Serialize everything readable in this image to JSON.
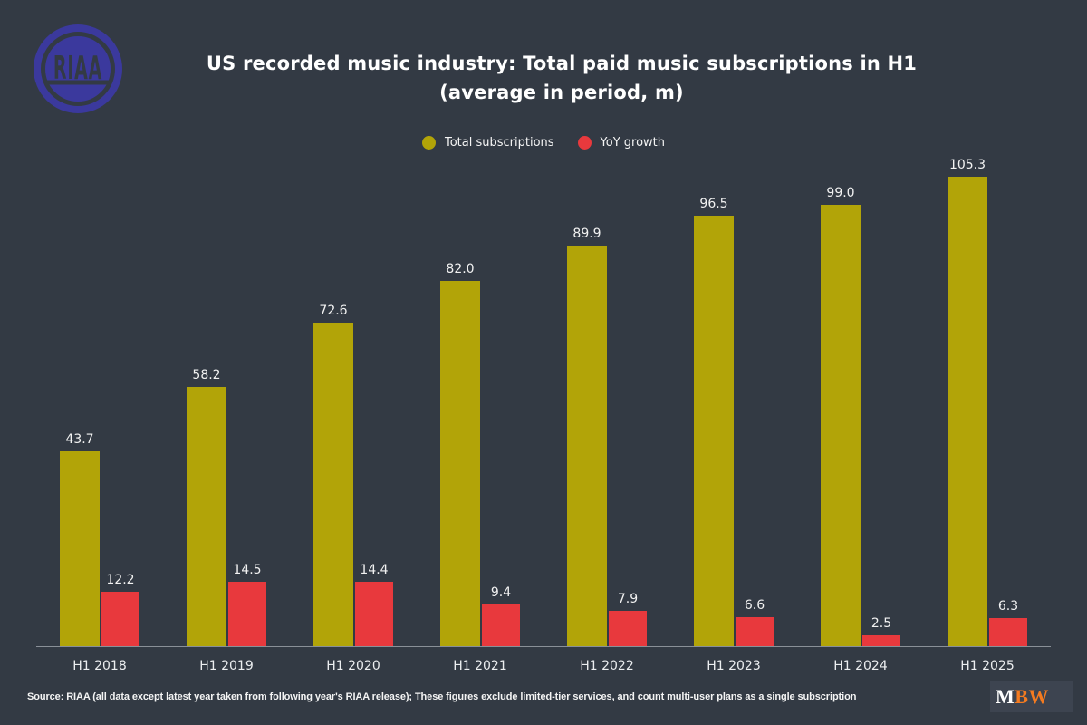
{
  "header": {
    "title_line1": "US recorded music industry: Total paid music subscriptions in H1",
    "title_line2": "(average in period, m)",
    "riaa_logo_text": "RIAA"
  },
  "legend": [
    {
      "label": "Total subscriptions",
      "color": "#b2a408"
    },
    {
      "label": "YoY growth",
      "color": "#e8393d"
    }
  ],
  "chart_data": {
    "type": "bar",
    "title": "US recorded music industry: Total paid music subscriptions in H1 (average in period, m)",
    "categories": [
      "H1 2018",
      "H1 2019",
      "H1 2020",
      "H1 2021",
      "H1 2022",
      "H1 2023",
      "H1 2024",
      "H1 2025"
    ],
    "series": [
      {
        "name": "Total subscriptions",
        "color": "#b2a408",
        "values": [
          43.7,
          58.2,
          72.6,
          82.0,
          89.9,
          96.5,
          99.0,
          105.3
        ]
      },
      {
        "name": "YoY growth",
        "color": "#e8393d",
        "values": [
          12.2,
          14.5,
          14.4,
          9.4,
          7.9,
          6.6,
          2.5,
          6.3
        ]
      }
    ],
    "xlabel": "",
    "ylabel": "",
    "ylim": [
      0,
      110
    ],
    "grid": false,
    "legend_position": "top",
    "value_labels": true,
    "value_label_format": "one_decimal"
  },
  "footer": {
    "source": "Source: RIAA (all data except latest year taken from following year's RIAA release); These figures exclude limited-tier services, and count multi-user plans as a single subscription",
    "mbw_logo": {
      "part1": "M",
      "part2": "BW"
    }
  },
  "colors": {
    "background": "#333a44",
    "bar_subscriptions": "#b2a408",
    "bar_yoy": "#e8393d",
    "riaa_blue": "#3b399d",
    "axis_line": "#d2d7de",
    "mbw_orange": "#f47b20",
    "text": "#ffffff"
  }
}
